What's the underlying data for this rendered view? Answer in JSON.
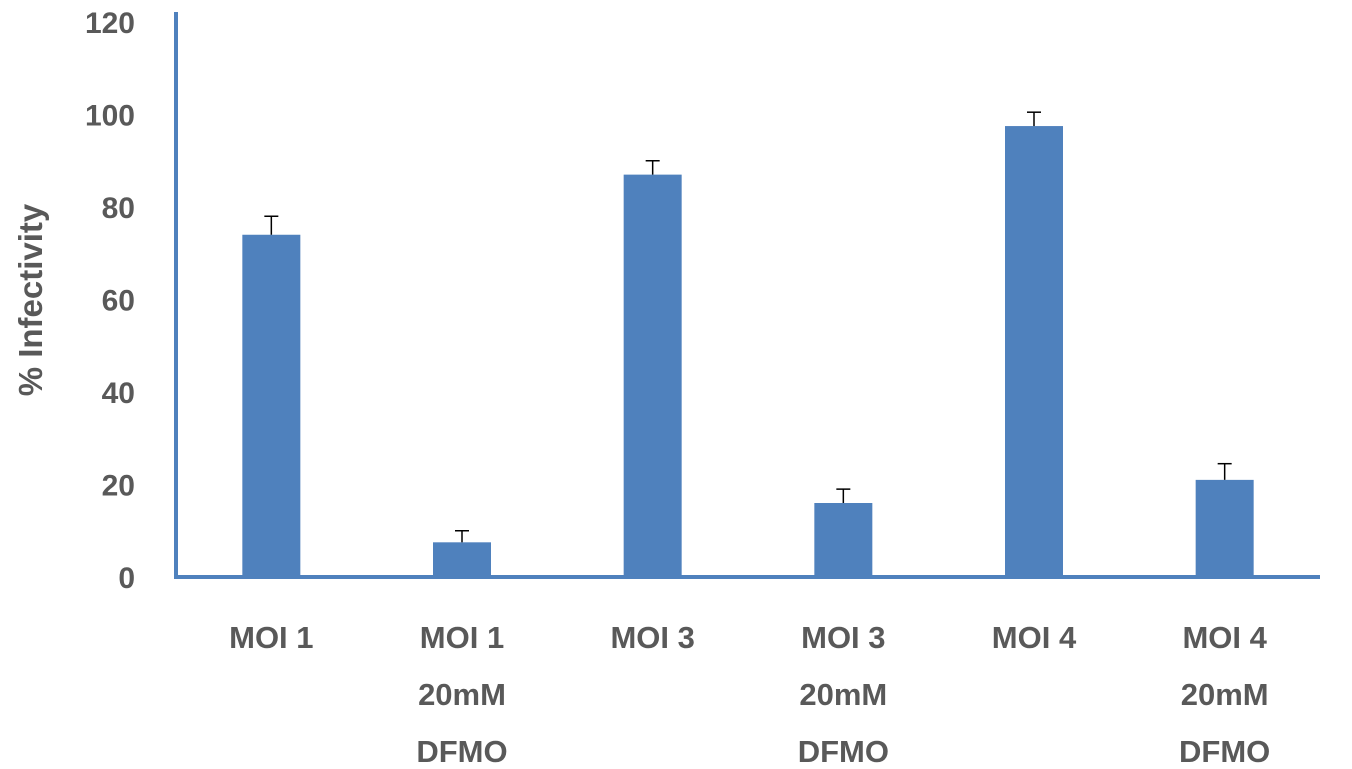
{
  "chart_data": {
    "type": "bar",
    "categories": [
      [
        "MOI 1"
      ],
      [
        "MOI 1",
        "20mM",
        "DFMO"
      ],
      [
        "MOI 3"
      ],
      [
        "MOI 3",
        "20mM",
        "DFMO"
      ],
      [
        "MOI 4"
      ],
      [
        "MOI 4",
        "20mM",
        "DFMO"
      ]
    ],
    "values": [
      74,
      7.5,
      87,
      16,
      97.5,
      21
    ],
    "error": [
      4,
      2.5,
      3,
      3,
      3,
      3.5
    ],
    "title": "",
    "xlabel": "",
    "ylabel": "% Infectivity",
    "ylim": [
      0,
      120
    ],
    "yticks": [
      0,
      20,
      40,
      60,
      80,
      100,
      120
    ],
    "grid": false,
    "legend": "none",
    "colors": {
      "bar": "#4f81bd",
      "axis": "#4f81bd",
      "text": "#595959",
      "errorbar": "#000000"
    }
  }
}
